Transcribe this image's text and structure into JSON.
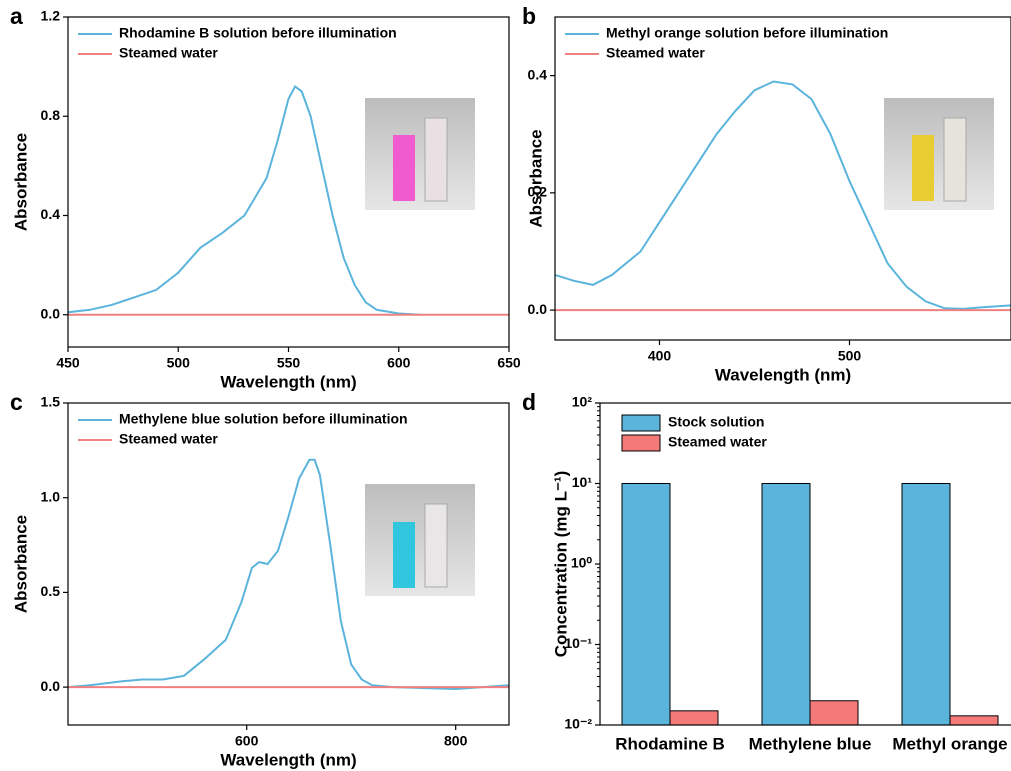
{
  "chart_data": [
    {
      "type": "line",
      "panel_label": "a",
      "x_label": "Wavelength (nm)",
      "y_label": "Absorbance",
      "xlim": [
        450,
        650
      ],
      "xticks": [
        450,
        500,
        550,
        600,
        650
      ],
      "ylim": [
        -0.13,
        1.2
      ],
      "yticks": [
        {
          "value": 0,
          "label": "0.0"
        },
        0.4,
        0.8,
        1.2
      ],
      "series": [
        {
          "name": "Rhodamine B solution before illumination",
          "color": "#5ab4dc",
          "x": [
            450,
            460,
            470,
            480,
            490,
            500,
            510,
            520,
            530,
            540,
            545,
            550,
            553,
            556,
            560,
            565,
            570,
            575,
            580,
            585,
            590,
            600,
            610
          ],
          "values": [
            0.01,
            0.02,
            0.04,
            0.07,
            0.1,
            0.17,
            0.27,
            0.33,
            0.4,
            0.55,
            0.7,
            0.87,
            0.92,
            0.9,
            0.8,
            0.6,
            0.4,
            0.23,
            0.12,
            0.05,
            0.02,
            0.005,
            0
          ]
        },
        {
          "name": "Steamed water",
          "color": "#f08080",
          "x": [
            450,
            650
          ],
          "values": [
            0,
            0
          ]
        }
      ]
    },
    {
      "type": "line",
      "panel_label": "b",
      "x_label": "Wavelength (nm)",
      "y_label": "Absorbance",
      "xlim": [
        345,
        585
      ],
      "xticks": [
        400,
        500
      ],
      "ylim": [
        -0.051,
        0.5
      ],
      "yticks": [
        {
          "value": 0,
          "label": "0.0"
        },
        0.2,
        0.4
      ],
      "series": [
        {
          "name": "Methyl orange solution before illumination",
          "color": "#5ab4dc",
          "x": [
            345,
            355,
            365,
            375,
            390,
            400,
            410,
            420,
            430,
            440,
            450,
            460,
            470,
            480,
            490,
            500,
            510,
            520,
            530,
            540,
            550,
            560,
            570,
            585
          ],
          "values": [
            0.06,
            0.05,
            0.043,
            0.06,
            0.1,
            0.15,
            0.2,
            0.25,
            0.3,
            0.34,
            0.375,
            0.39,
            0.385,
            0.36,
            0.3,
            0.22,
            0.15,
            0.08,
            0.04,
            0.015,
            0.003,
            0.002,
            0.005,
            0.008
          ]
        },
        {
          "name": "Steamed water",
          "color": "#f08080",
          "x": [
            345,
            585
          ],
          "values": [
            0,
            0
          ]
        }
      ]
    },
    {
      "type": "line",
      "panel_label": "c",
      "x_label": "Wavelength (nm)",
      "y_label": "Absorbance",
      "xlim": [
        429,
        851
      ],
      "xticks": [
        600,
        800
      ],
      "ylim": [
        -0.2,
        1.5
      ],
      "yticks": [
        {
          "value": 0,
          "label": "0.0"
        },
        0.5,
        {
          "value": 1,
          "label": "1.0"
        },
        1.5
      ],
      "series": [
        {
          "name": "Methylene blue solution before illumination",
          "color": "#5ab4dc",
          "x": [
            429,
            450,
            480,
            500,
            520,
            540,
            560,
            580,
            595,
            605,
            612,
            620,
            630,
            640,
            650,
            660,
            665,
            670,
            680,
            690,
            700,
            710,
            720,
            740,
            800,
            851
          ],
          "values": [
            0,
            0.01,
            0.03,
            0.04,
            0.04,
            0.06,
            0.15,
            0.25,
            0.45,
            0.63,
            0.66,
            0.65,
            0.72,
            0.9,
            1.1,
            1.2,
            1.2,
            1.12,
            0.75,
            0.35,
            0.12,
            0.04,
            0.01,
            0,
            -0.01,
            0.01
          ]
        },
        {
          "name": "Steamed water",
          "color": "#f08080",
          "x": [
            429,
            851
          ],
          "values": [
            0,
            0
          ]
        }
      ]
    },
    {
      "type": "bar",
      "panel_label": "d",
      "y_label": "Concentration (mg L⁻¹)",
      "log_scale": true,
      "categories": [
        "Rhodamine B",
        "Methylene blue",
        "Methyl orange"
      ],
      "ylim": [
        0.01,
        100
      ],
      "yticks": [
        {
          "value": 0.01,
          "label": "10⁻²"
        },
        {
          "value": 0.1,
          "label": "10⁻¹"
        },
        {
          "value": 1,
          "label": "10⁰"
        },
        {
          "value": 10,
          "label": "10¹"
        },
        {
          "value": 100,
          "label": "10²"
        }
      ],
      "series": [
        {
          "name": "Stock solution",
          "color": "#5ab4dc",
          "values": [
            10,
            10,
            10
          ]
        },
        {
          "name": "Steamed water",
          "color": "#f47a7a",
          "values": [
            0.015,
            0.02,
            0.013
          ]
        }
      ]
    }
  ]
}
